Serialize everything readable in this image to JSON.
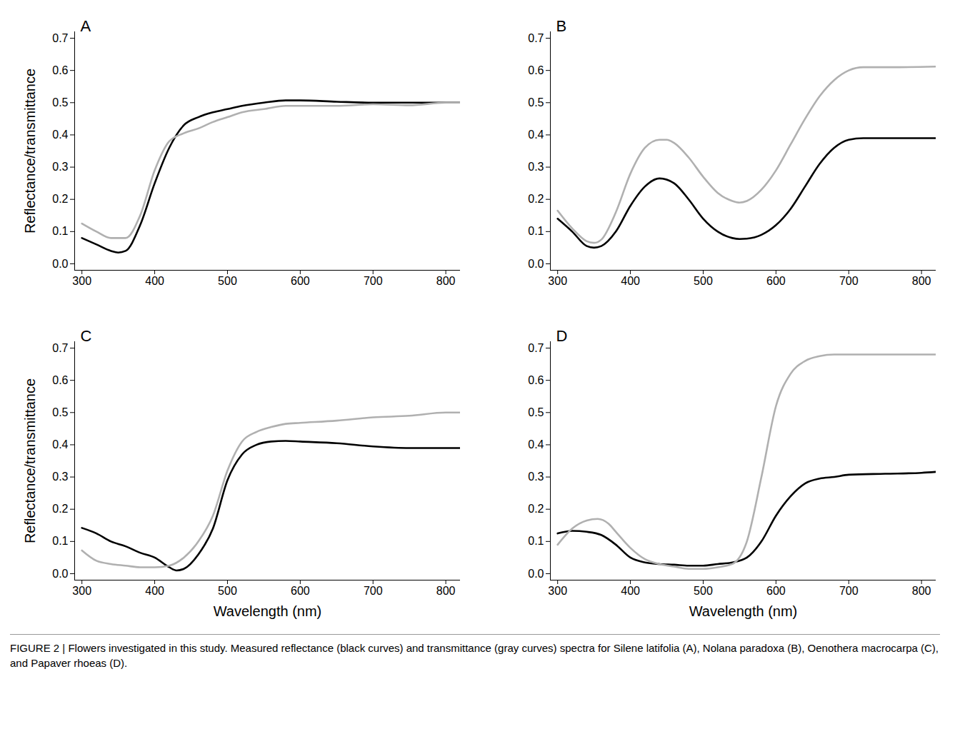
{
  "chart_data": [
    {
      "type": "line",
      "title": "A",
      "y_label": "Reflectance/transmittance",
      "x_label": null,
      "xlim": [
        290,
        820
      ],
      "ylim": [
        -0.02,
        0.72
      ],
      "xticks": [
        300,
        400,
        500,
        600,
        700,
        800
      ],
      "yticks": [
        {
          "value": 0,
          "label": "0.0"
        },
        0.1,
        0.2,
        0.3,
        0.4,
        0.5,
        0.6,
        0.7
      ],
      "grid": false,
      "series": [
        {
          "color": "#000000",
          "x": [
            300,
            320,
            340,
            350,
            360,
            380,
            400,
            420,
            440,
            460,
            480,
            500,
            520,
            550,
            580,
            600,
            650,
            700,
            750,
            800,
            820
          ],
          "values": [
            0.08,
            0.06,
            0.04,
            0.035,
            0.04,
            0.12,
            0.25,
            0.36,
            0.43,
            0.455,
            0.47,
            0.48,
            0.49,
            0.5,
            0.507,
            0.507,
            0.503,
            0.5,
            0.5,
            0.5,
            0.5
          ]
        },
        {
          "color": "#b0b0b0",
          "x": [
            300,
            320,
            340,
            360,
            380,
            400,
            420,
            440,
            460,
            480,
            500,
            520,
            550,
            580,
            600,
            650,
            700,
            750,
            800,
            820
          ],
          "values": [
            0.125,
            0.1,
            0.08,
            0.08,
            0.15,
            0.29,
            0.38,
            0.405,
            0.42,
            0.44,
            0.455,
            0.47,
            0.48,
            0.49,
            0.49,
            0.49,
            0.495,
            0.492,
            0.5,
            0.5
          ]
        }
      ]
    },
    {
      "type": "line",
      "title": "B",
      "y_label": null,
      "x_label": null,
      "xlim": [
        290,
        820
      ],
      "ylim": [
        -0.02,
        0.72
      ],
      "xticks": [
        300,
        400,
        500,
        600,
        700,
        800
      ],
      "yticks": [
        {
          "value": 0,
          "label": "0.0"
        },
        0.1,
        0.2,
        0.3,
        0.4,
        0.5,
        0.6,
        0.7
      ],
      "grid": false,
      "series": [
        {
          "color": "#000000",
          "x": [
            300,
            320,
            340,
            350,
            360,
            380,
            400,
            420,
            440,
            460,
            480,
            500,
            520,
            540,
            550,
            560,
            580,
            600,
            620,
            640,
            660,
            680,
            700,
            720,
            760,
            820
          ],
          "values": [
            0.14,
            0.1,
            0.055,
            0.05,
            0.055,
            0.1,
            0.18,
            0.24,
            0.265,
            0.25,
            0.2,
            0.14,
            0.1,
            0.08,
            0.077,
            0.078,
            0.09,
            0.12,
            0.17,
            0.24,
            0.31,
            0.36,
            0.385,
            0.39,
            0.39,
            0.39
          ]
        },
        {
          "color": "#b0b0b0",
          "x": [
            300,
            320,
            340,
            350,
            360,
            380,
            400,
            420,
            440,
            450,
            460,
            480,
            500,
            520,
            540,
            550,
            560,
            580,
            600,
            620,
            640,
            660,
            680,
            700,
            720,
            760,
            820
          ],
          "values": [
            0.165,
            0.11,
            0.07,
            0.065,
            0.075,
            0.16,
            0.28,
            0.36,
            0.385,
            0.385,
            0.375,
            0.33,
            0.27,
            0.22,
            0.195,
            0.19,
            0.195,
            0.23,
            0.29,
            0.37,
            0.45,
            0.52,
            0.57,
            0.6,
            0.61,
            0.61,
            0.612
          ]
        }
      ]
    },
    {
      "type": "line",
      "title": "C",
      "y_label": "Reflectance/transmittance",
      "x_label": "Wavelength (nm)",
      "xlim": [
        290,
        820
      ],
      "ylim": [
        -0.02,
        0.72
      ],
      "xticks": [
        300,
        400,
        500,
        600,
        700,
        800
      ],
      "yticks": [
        {
          "value": 0,
          "label": "0.0"
        },
        0.1,
        0.2,
        0.3,
        0.4,
        0.5,
        0.6,
        0.7
      ],
      "grid": false,
      "series": [
        {
          "color": "#000000",
          "x": [
            300,
            320,
            340,
            360,
            380,
            400,
            420,
            430,
            440,
            460,
            480,
            500,
            520,
            540,
            560,
            580,
            600,
            650,
            700,
            750,
            800,
            820
          ],
          "values": [
            0.142,
            0.125,
            0.1,
            0.085,
            0.065,
            0.05,
            0.02,
            0.01,
            0.015,
            0.06,
            0.14,
            0.29,
            0.37,
            0.4,
            0.41,
            0.412,
            0.41,
            0.405,
            0.395,
            0.39,
            0.39,
            0.39
          ]
        },
        {
          "color": "#b0b0b0",
          "x": [
            300,
            320,
            340,
            360,
            380,
            400,
            420,
            440,
            460,
            480,
            500,
            520,
            540,
            560,
            580,
            600,
            650,
            700,
            750,
            800,
            820
          ],
          "values": [
            0.072,
            0.04,
            0.03,
            0.025,
            0.02,
            0.02,
            0.025,
            0.05,
            0.1,
            0.18,
            0.32,
            0.41,
            0.44,
            0.455,
            0.465,
            0.468,
            0.475,
            0.485,
            0.49,
            0.5,
            0.5
          ]
        }
      ]
    },
    {
      "type": "line",
      "title": "D",
      "y_label": null,
      "x_label": "Wavelength (nm)",
      "xlim": [
        290,
        820
      ],
      "ylim": [
        -0.02,
        0.72
      ],
      "xticks": [
        300,
        400,
        500,
        600,
        700,
        800
      ],
      "yticks": [
        {
          "value": 0,
          "label": "0.0"
        },
        0.1,
        0.2,
        0.3,
        0.4,
        0.5,
        0.6,
        0.7
      ],
      "grid": false,
      "series": [
        {
          "color": "#000000",
          "x": [
            300,
            320,
            340,
            360,
            380,
            400,
            420,
            440,
            460,
            480,
            500,
            520,
            540,
            560,
            580,
            600,
            620,
            640,
            660,
            680,
            700,
            750,
            800,
            820
          ],
          "values": [
            0.125,
            0.133,
            0.13,
            0.12,
            0.09,
            0.05,
            0.035,
            0.03,
            0.028,
            0.025,
            0.025,
            0.03,
            0.035,
            0.05,
            0.1,
            0.18,
            0.24,
            0.28,
            0.295,
            0.3,
            0.307,
            0.31,
            0.313,
            0.316
          ]
        },
        {
          "color": "#b0b0b0",
          "x": [
            300,
            320,
            340,
            355,
            370,
            380,
            400,
            420,
            440,
            460,
            480,
            500,
            520,
            540,
            560,
            580,
            600,
            620,
            640,
            660,
            680,
            700,
            820
          ],
          "values": [
            0.09,
            0.14,
            0.165,
            0.17,
            0.155,
            0.13,
            0.08,
            0.045,
            0.03,
            0.022,
            0.015,
            0.015,
            0.02,
            0.03,
            0.1,
            0.3,
            0.52,
            0.62,
            0.66,
            0.675,
            0.68,
            0.68,
            0.68
          ]
        }
      ]
    }
  ],
  "caption": "FIGURE 2 | Flowers investigated in this study. Measured reflectance (black curves) and transmittance (gray curves) spectra for Silene latifolia (A), Nolana paradoxa (B), Oenothera macrocarpa (C), and Papaver rhoeas (D)."
}
